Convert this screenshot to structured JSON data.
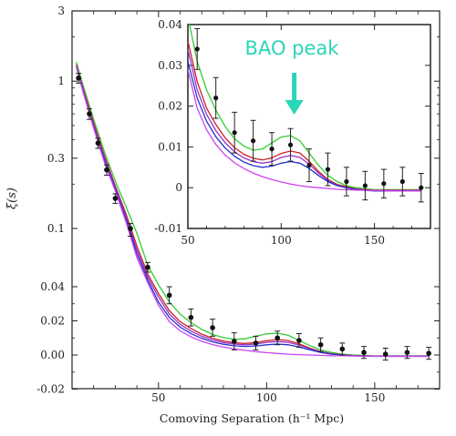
{
  "chart_data": [
    {
      "type": "line",
      "role": "main",
      "xlabel": "Comoving Separation (h⁻¹ Mpc)",
      "ylabel": "ξ(s)",
      "xlim": [
        10,
        180
      ],
      "y_scale": "mixed log (ξ ≥ 0.1) / linear (ξ ≤ 0.04)",
      "x_ticks": [
        "50",
        "100",
        "150"
      ],
      "y_ticks": [
        "3",
        "1",
        "0.3",
        "0.1",
        "0.04",
        "0.02",
        "0.00",
        "-0.02"
      ],
      "y_tick_values": [
        3,
        1,
        0.3,
        0.1,
        0.04,
        0.02,
        0,
        -0.02
      ],
      "grid": false,
      "legend": "none",
      "points": {
        "x": [
          13,
          18,
          22,
          26,
          30,
          37,
          45,
          55,
          65,
          75,
          85,
          95,
          105,
          115,
          125,
          135,
          145,
          155,
          165,
          175
        ],
        "y": [
          1.05,
          0.6,
          0.38,
          0.25,
          0.16,
          0.1,
          0.06,
          0.035,
          0.022,
          0.016,
          0.008,
          0.007,
          0.01,
          0.0085,
          0.006,
          0.0035,
          0.0015,
          0.0005,
          0.0015,
          0.001
        ],
        "err": [
          0.08,
          0.05,
          0.03,
          0.02,
          0.012,
          0.008,
          0.005,
          0.005,
          0.005,
          0.005,
          0.005,
          0.004,
          0.004,
          0.004,
          0.004,
          0.0035,
          0.0035,
          0.0035,
          0.0035,
          0.0035
        ]
      },
      "series": [
        {
          "color": "#33cc33",
          "x": [
            12,
            15,
            20,
            25,
            30,
            35,
            40,
            45,
            50,
            55,
            60,
            65,
            70,
            75,
            80,
            85,
            90,
            95,
            100,
            105,
            110,
            115,
            120,
            125,
            130,
            135,
            140,
            150,
            160,
            175
          ],
          "y": [
            1.35,
            0.95,
            0.55,
            0.33,
            0.21,
            0.14,
            0.095,
            0.062,
            0.042,
            0.031,
            0.024,
            0.019,
            0.015,
            0.012,
            0.0102,
            0.0092,
            0.0095,
            0.011,
            0.0124,
            0.0128,
            0.0115,
            0.0085,
            0.0055,
            0.003,
            0.0015,
            0.0005,
            0.0,
            -0.0005,
            -0.0005,
            -0.0005
          ]
        },
        {
          "color": "#cc2222",
          "x": [
            12,
            15,
            20,
            25,
            30,
            35,
            40,
            45,
            50,
            55,
            60,
            65,
            70,
            75,
            80,
            85,
            90,
            95,
            100,
            105,
            110,
            115,
            120,
            125,
            130,
            135,
            140,
            150,
            160,
            175
          ],
          "y": [
            1.3,
            0.9,
            0.52,
            0.31,
            0.195,
            0.125,
            0.082,
            0.053,
            0.036,
            0.026,
            0.0195,
            0.0155,
            0.0122,
            0.0098,
            0.0082,
            0.0072,
            0.0068,
            0.0073,
            0.0084,
            0.009,
            0.0085,
            0.0065,
            0.004,
            0.002,
            0.0008,
            0.0002,
            -0.0003,
            -0.0006,
            -0.0006,
            -0.0006
          ]
        },
        {
          "color": "#9933cc",
          "x": [
            12,
            15,
            20,
            25,
            30,
            35,
            40,
            45,
            50,
            55,
            60,
            65,
            70,
            75,
            80,
            85,
            90,
            95,
            100,
            105,
            110,
            115,
            120,
            125,
            130,
            135,
            140,
            150,
            160,
            175
          ],
          "y": [
            1.28,
            0.88,
            0.5,
            0.3,
            0.19,
            0.12,
            0.078,
            0.05,
            0.034,
            0.024,
            0.018,
            0.014,
            0.011,
            0.0088,
            0.0073,
            0.0064,
            0.006,
            0.0064,
            0.0074,
            0.0079,
            0.0074,
            0.0058,
            0.0036,
            0.0018,
            0.0006,
            0.0,
            -0.0004,
            -0.0007,
            -0.0007,
            -0.0007
          ]
        },
        {
          "color": "#2233cc",
          "x": [
            12,
            15,
            20,
            25,
            30,
            35,
            40,
            45,
            50,
            55,
            60,
            65,
            70,
            75,
            80,
            85,
            90,
            95,
            100,
            105,
            110,
            115,
            120,
            125,
            130,
            135,
            140,
            150,
            160,
            175
          ],
          "y": [
            1.25,
            0.86,
            0.49,
            0.29,
            0.185,
            0.115,
            0.074,
            0.047,
            0.031,
            0.022,
            0.0163,
            0.0125,
            0.0097,
            0.0077,
            0.0063,
            0.0054,
            0.005,
            0.0053,
            0.006,
            0.0064,
            0.006,
            0.0047,
            0.003,
            0.0015,
            0.0005,
            0.0,
            -0.0005,
            -0.0008,
            -0.0008,
            -0.0008
          ]
        },
        {
          "color": "#cc44ee",
          "x": [
            12,
            15,
            20,
            25,
            30,
            35,
            40,
            45,
            50,
            55,
            60,
            65,
            70,
            75,
            80,
            85,
            90,
            95,
            100,
            105,
            110,
            115,
            120,
            125,
            130,
            135,
            140,
            150,
            160,
            175
          ],
          "y": [
            1.25,
            0.85,
            0.48,
            0.28,
            0.18,
            0.11,
            0.07,
            0.044,
            0.029,
            0.0195,
            0.0142,
            0.0106,
            0.008,
            0.0061,
            0.0047,
            0.0036,
            0.0027,
            0.002,
            0.0014,
            0.0009,
            0.0005,
            0.0002,
            0.0,
            -0.0002,
            -0.0004,
            -0.0005,
            -0.0006,
            -0.0007,
            -0.0008,
            -0.0008
          ]
        }
      ]
    },
    {
      "type": "line",
      "role": "inset",
      "xlim": [
        50,
        180
      ],
      "ylim": [
        -0.01,
        0.04
      ],
      "x_ticks": [
        "50",
        "100",
        "150"
      ],
      "x_tick_values": [
        50,
        100,
        150
      ],
      "y_ticks": [
        "0.04",
        "0.03",
        "0.02",
        "0.01",
        "0",
        "-0.01"
      ],
      "y_tick_values": [
        0.04,
        0.03,
        0.02,
        0.01,
        0,
        -0.01
      ],
      "annotation": "BAO peak",
      "annotation_color": "#2ad6b8",
      "annotation_target": {
        "x": 107,
        "y": 0.017
      },
      "grid": false,
      "legend": "none",
      "points": {
        "x": [
          55,
          65,
          75,
          85,
          95,
          105,
          115,
          125,
          135,
          145,
          155,
          165,
          175
        ],
        "y": [
          0.034,
          0.022,
          0.0135,
          0.0115,
          0.0095,
          0.0105,
          0.0055,
          0.0045,
          0.0015,
          0.0005,
          0.001,
          0.0015,
          0.0
        ],
        "err": [
          0.005,
          0.005,
          0.005,
          0.005,
          0.004,
          0.004,
          0.004,
          0.004,
          0.0035,
          0.0035,
          0.0035,
          0.0035,
          0.0035
        ]
      }
    }
  ]
}
